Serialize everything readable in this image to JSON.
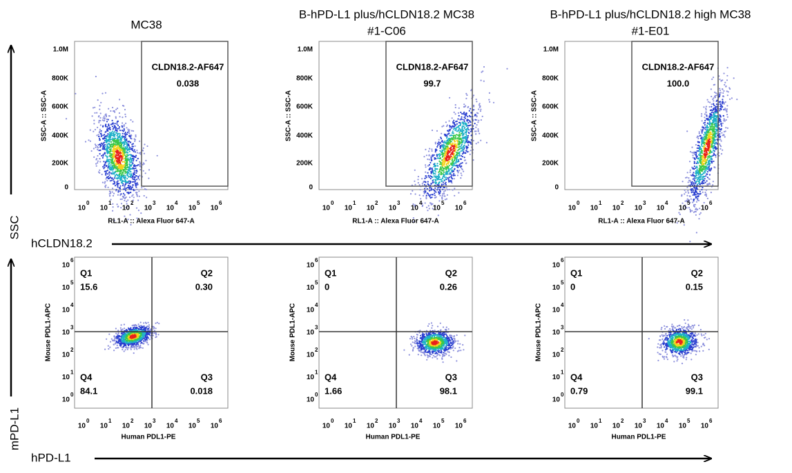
{
  "columns": [
    {
      "title": [
        "MC38"
      ],
      "top_plot": {
        "gate_label": "CLDN18.2-AF647",
        "gate_value": "0.038"
      },
      "bottom_plot": {
        "q1": {
          "label": "Q1",
          "value": "15.6"
        },
        "q2": {
          "label": "Q2",
          "value": "0.30"
        },
        "q3": {
          "label": "Q3",
          "value": "0.018"
        },
        "q4": {
          "label": "Q4",
          "value": "84.1"
        }
      }
    },
    {
      "title": [
        "B-hPD-L1 plus/hCLDN18.2 MC38",
        "#1-C06"
      ],
      "top_plot": {
        "gate_label": "CLDN18.2-AF647",
        "gate_value": "99.7"
      },
      "bottom_plot": {
        "q1": {
          "label": "Q1",
          "value": "0"
        },
        "q2": {
          "label": "Q2",
          "value": "0.26"
        },
        "q3": {
          "label": "Q3",
          "value": "98.1"
        },
        "q4": {
          "label": "Q4",
          "value": "1.66"
        }
      }
    },
    {
      "title": [
        "B-hPD-L1 plus/hCLDN18.2 high MC38",
        "#1-E01"
      ],
      "top_plot": {
        "gate_label": "CLDN18.2-AF647",
        "gate_value": "100.0"
      },
      "bottom_plot": {
        "q1": {
          "label": "Q1",
          "value": "0"
        },
        "q2": {
          "label": "Q2",
          "value": "0.15"
        },
        "q3": {
          "label": "Q3",
          "value": "99.1"
        },
        "q4": {
          "label": "Q4",
          "value": "0.79"
        }
      }
    }
  ],
  "top_axes": {
    "y_label": "SSC-A :: SSC-A",
    "x_label": "RL1-A :: Alexa Fluor  647-A",
    "y_ticks": [
      "1.0M",
      "800K",
      "600K",
      "400K",
      "200K",
      "0"
    ],
    "tick_base": "10",
    "x_tick_exponents": [
      "0",
      "1",
      "2",
      "3",
      "4",
      "5",
      "6"
    ]
  },
  "bottom_axes": {
    "y_label": "Mouse PDL1-APC",
    "x_label": "Human PDL1-PE",
    "tick_base": "10",
    "tick_exponents": [
      "0",
      "1",
      "2",
      "3",
      "4",
      "5",
      "6"
    ]
  },
  "row_labels": {
    "top": {
      "y": "SSC",
      "x": "hCLDN18.2"
    },
    "bottom": {
      "y": "mPD-L1",
      "x": "hPD-L1"
    }
  }
}
